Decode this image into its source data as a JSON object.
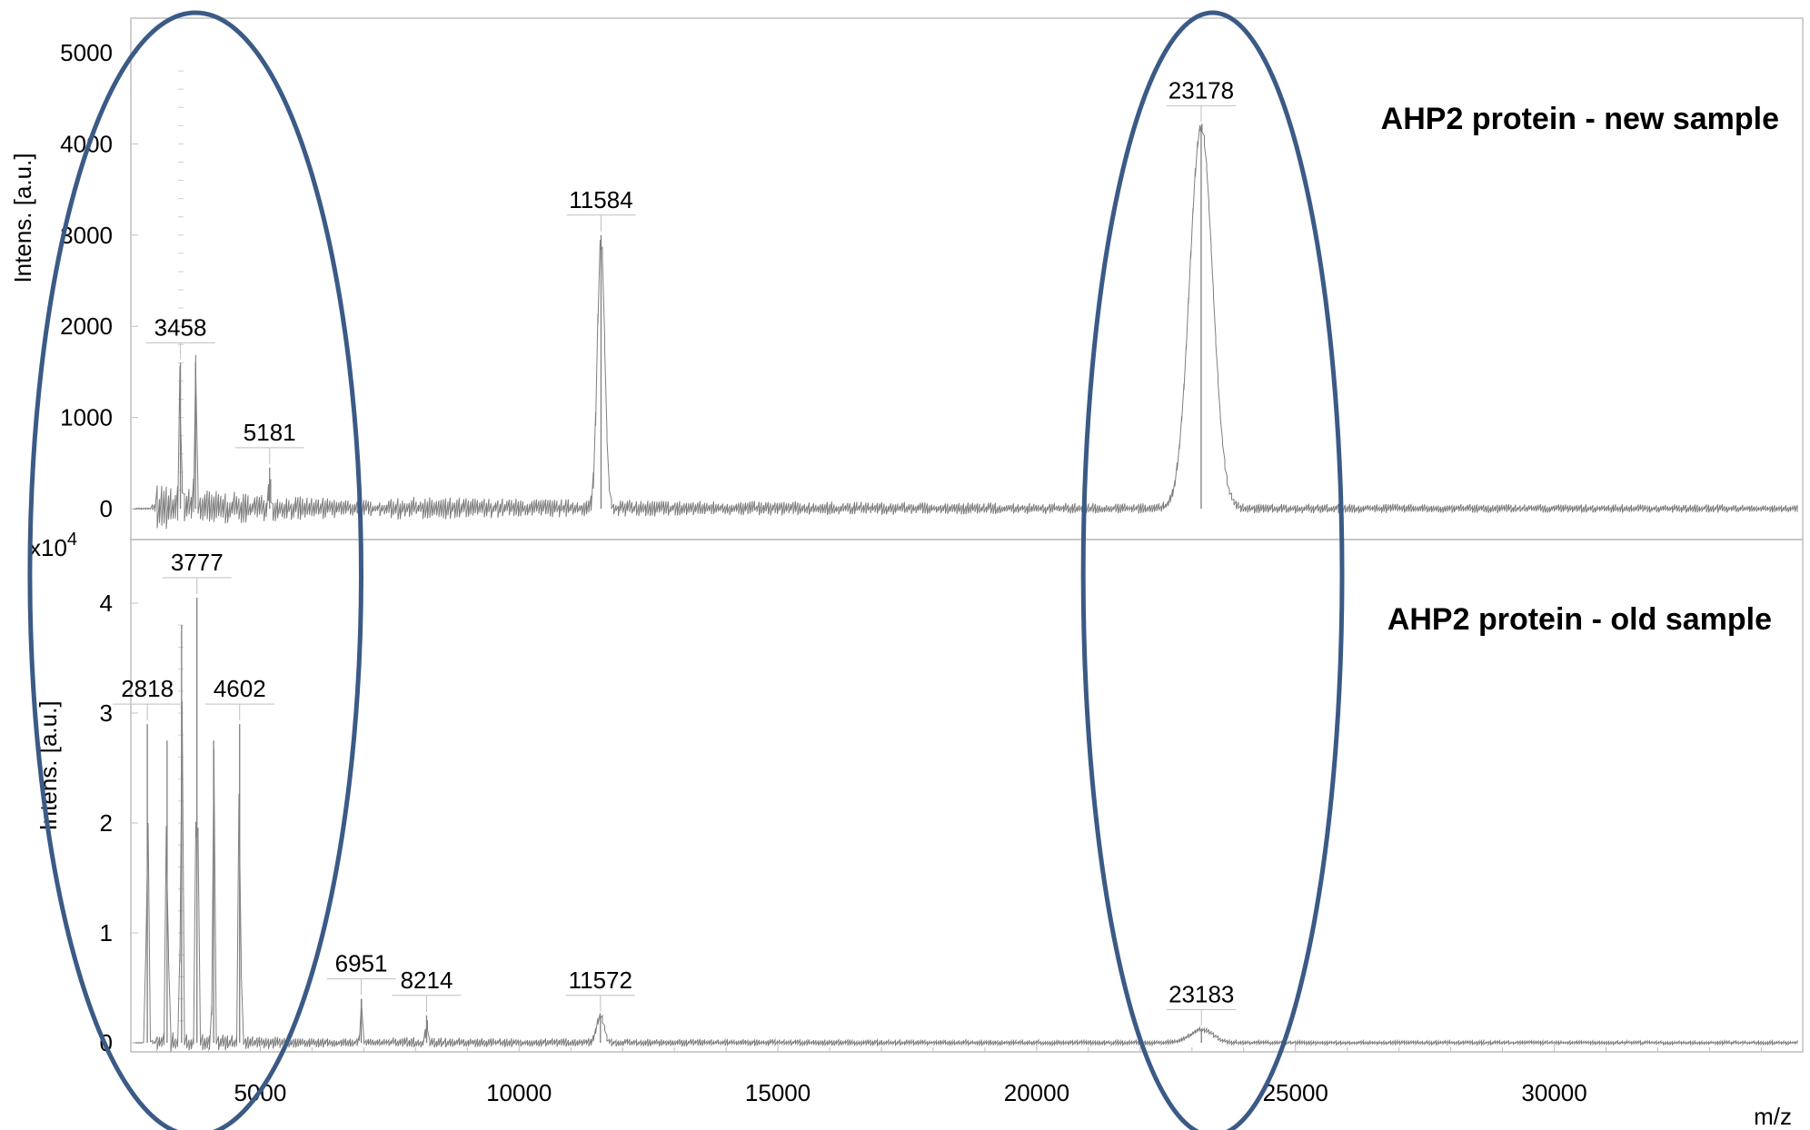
{
  "chart_data": {
    "type": "line",
    "x_axis": {
      "label": "m/z",
      "range": [
        2500,
        34800
      ],
      "ticks": [
        5000,
        10000,
        15000,
        20000,
        25000,
        30000
      ],
      "tick_labels": [
        "5000",
        "10000",
        "15000",
        "20000",
        "25000",
        "30000"
      ]
    },
    "panels": [
      {
        "id": "new",
        "title": "AHP2 protein - new sample",
        "ylabel": "Intens. [a.u.]",
        "y_multiplier": "",
        "ylim": [
          -250,
          5400
        ],
        "y_ticks": [
          0,
          1000,
          2000,
          3000,
          4000,
          5000
        ],
        "y_tick_labels": [
          "0",
          "1000",
          "2000",
          "3000",
          "4000",
          "5000"
        ],
        "noise_level": 130,
        "peaks": [
          {
            "mz": 23178,
            "intensity": 4200,
            "label": "23178"
          },
          {
            "mz": 11584,
            "intensity": 3000,
            "label": "11584"
          },
          {
            "mz": 3458,
            "intensity": 1600,
            "label": "3458"
          },
          {
            "mz": 3750,
            "intensity": 1600,
            "label": ""
          },
          {
            "mz": 5181,
            "intensity": 450,
            "label": "5181"
          }
        ]
      },
      {
        "id": "old",
        "title": "AHP2 protein - old sample",
        "ylabel": "Intens. [a.u.]",
        "y_multiplier": "x10",
        "y_multiplier_exp": "4",
        "ylim": [
          -0.05,
          4.65
        ],
        "y_ticks": [
          0,
          1,
          2,
          3,
          4
        ],
        "y_tick_labels": [
          "0",
          "1",
          "2",
          "3",
          "4"
        ],
        "noise_level": 0.05,
        "peaks": [
          {
            "mz": 3777,
            "intensity": 4.05,
            "label": "3777"
          },
          {
            "mz": 3480,
            "intensity": 3.8,
            "label": ""
          },
          {
            "mz": 2818,
            "intensity": 2.9,
            "label": "2818"
          },
          {
            "mz": 4602,
            "intensity": 2.9,
            "label": "4602"
          },
          {
            "mz": 3200,
            "intensity": 2.75,
            "label": ""
          },
          {
            "mz": 4100,
            "intensity": 2.75,
            "label": ""
          },
          {
            "mz": 6951,
            "intensity": 0.4,
            "label": "6951"
          },
          {
            "mz": 8214,
            "intensity": 0.25,
            "label": "8214"
          },
          {
            "mz": 11572,
            "intensity": 0.25,
            "label": "11572"
          },
          {
            "mz": 23183,
            "intensity": 0.12,
            "label": "23183"
          }
        ]
      }
    ],
    "highlight_ellipses": [
      {
        "name": "low-mass-region",
        "mz_center": 3750,
        "mz_half_width": 3200
      },
      {
        "name": "dimer-region",
        "mz_center": 23400,
        "mz_half_width": 2500
      }
    ],
    "colors": {
      "spectrum": "#7f7f7f",
      "ellipse": "#3b5a86",
      "frame": "#bfbfbf"
    }
  }
}
